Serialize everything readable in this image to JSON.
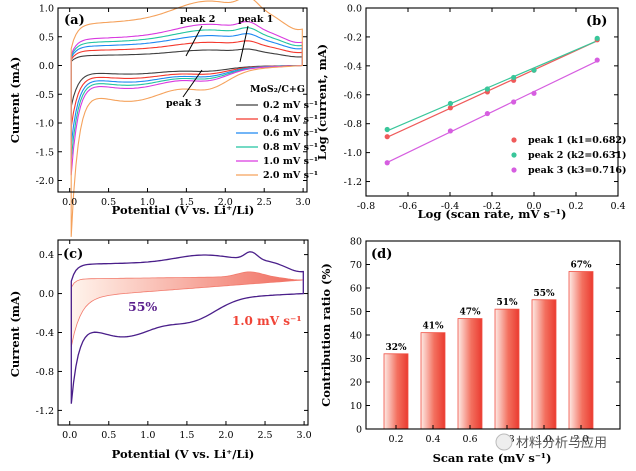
{
  "watermark": {
    "text": "材料分析与应用"
  },
  "colors": {
    "scan_rates": [
      "#404040",
      "#f4392e",
      "#1f89f2",
      "#22c4a0",
      "#d93ae0",
      "#f5a25c"
    ],
    "peak1": "#ef5a5a",
    "peak2": "#39c69a",
    "peak3": "#d65ee0",
    "panel_c_cv": "#4a1f8a",
    "panel_c_fill": "#f27a6c",
    "bar": "#f04e42"
  },
  "chart_data": [
    {
      "id": "a",
      "type": "line",
      "panel_label": "(a)",
      "xlabel": "Potential (V vs. Li⁺/Li)",
      "ylabel": "Current (mA)",
      "xlim": [
        -0.15,
        3.05
      ],
      "ylim": [
        -2.2,
        1.0
      ],
      "xticks": [
        "0.0",
        "0.5",
        "1.0",
        "1.5",
        "2.0",
        "2.5",
        "3.0"
      ],
      "yticks": [
        "1.0",
        "0.5",
        "0.0",
        "-0.5",
        "-1.0",
        "-1.5",
        "-2.0"
      ],
      "legend_title": "MoS₂/C+G",
      "annotations": [
        "peak 2",
        "peak 1",
        "peak 3"
      ],
      "series": [
        {
          "name": "0.2 mV s⁻¹",
          "scale": 0.3
        },
        {
          "name": "0.4 mV s⁻¹",
          "scale": 0.45
        },
        {
          "name": "0.6 mV s⁻¹",
          "scale": 0.58
        },
        {
          "name": "0.8 mV s⁻¹",
          "scale": 0.69
        },
        {
          "name": "1.0 mV s⁻¹",
          "scale": 0.8
        },
        {
          "name": "2.0 mV s⁻¹",
          "scale": 1.25
        }
      ]
    },
    {
      "id": "b",
      "type": "scatter",
      "panel_label": "(b)",
      "xlabel": "Log (scan rate, mV s⁻¹)",
      "ylabel": "Log (current, mA)",
      "xlim": [
        -0.8,
        0.4
      ],
      "ylim": [
        -1.3,
        0.0
      ],
      "xticks": [
        "-0.8",
        "-0.6",
        "-0.4",
        "-0.2",
        "0.0",
        "0.2",
        "0.4"
      ],
      "yticks": [
        "0.0",
        "-0.2",
        "-0.4",
        "-0.6",
        "-0.8",
        "-1.0",
        "-1.2"
      ],
      "x": [
        -0.699,
        -0.398,
        -0.222,
        -0.097,
        0.0,
        0.301
      ],
      "series": [
        {
          "name": "peak 1 (k1=0.682)",
          "y": [
            -0.89,
            -0.69,
            -0.58,
            -0.5,
            -0.43,
            -0.22
          ]
        },
        {
          "name": "peak 2 (k2=0.631)",
          "y": [
            -0.84,
            -0.66,
            -0.56,
            -0.48,
            -0.43,
            -0.21
          ]
        },
        {
          "name": "peak 3 (k3=0.716)",
          "y": [
            -1.07,
            -0.85,
            -0.73,
            -0.65,
            -0.59,
            -0.36
          ]
        }
      ]
    },
    {
      "id": "c",
      "type": "area",
      "panel_label": "(c)",
      "xlabel": "Potential (V vs. Li⁺/Li)",
      "ylabel": "Current (mA)",
      "xlim": [
        -0.15,
        3.05
      ],
      "ylim": [
        -1.35,
        0.55
      ],
      "xticks": [
        "0.0",
        "0.5",
        "1.0",
        "1.5",
        "2.0",
        "2.5",
        "3.0"
      ],
      "yticks": [
        "0.4",
        "0.0",
        "-0.4",
        "-0.8",
        "-1.2"
      ],
      "capacitive_label": "55%",
      "rate_label": "1.0 mV s⁻¹"
    },
    {
      "id": "d",
      "type": "bar",
      "panel_label": "(d)",
      "xlabel": "Scan rate (mV s⁻¹)",
      "ylabel": "Contribution ratio (%)",
      "ylim": [
        0,
        80
      ],
      "categories": [
        "0.2",
        "0.4",
        "0.6",
        "0.8",
        "1.0",
        "2.0"
      ],
      "values": [
        32,
        41,
        47,
        51,
        55,
        67
      ],
      "value_labels": [
        "32%",
        "41%",
        "47%",
        "51%",
        "55%",
        "67%"
      ],
      "yticks": [
        "0",
        "10",
        "20",
        "30",
        "40",
        "50",
        "60",
        "70",
        "80"
      ]
    }
  ]
}
